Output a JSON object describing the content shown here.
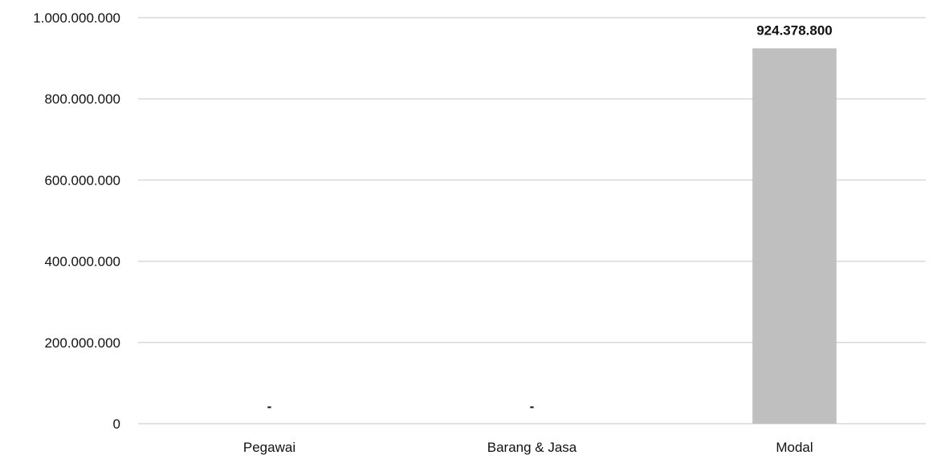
{
  "chart_data": {
    "type": "bar",
    "categories": [
      "Pegawai",
      "Barang & Jasa",
      "Modal"
    ],
    "values": [
      0,
      0,
      924378800
    ],
    "data_labels": [
      "-",
      "-",
      "924.378.800"
    ],
    "y_ticks": [
      {
        "value": 0,
        "label": "0"
      },
      {
        "value": 200000000,
        "label": "200.000.000"
      },
      {
        "value": 400000000,
        "label": "400.000.000"
      },
      {
        "value": 600000000,
        "label": "600.000.000"
      },
      {
        "value": 800000000,
        "label": "800.000.000"
      },
      {
        "value": 1000000000,
        "label": "1.000.000.000"
      }
    ],
    "ylim": [
      0,
      1000000000
    ],
    "grid": true,
    "legend": "none",
    "bar_color": "#bfbfbf",
    "grid_color": "#d9d9d9",
    "text_color": "#111111"
  }
}
